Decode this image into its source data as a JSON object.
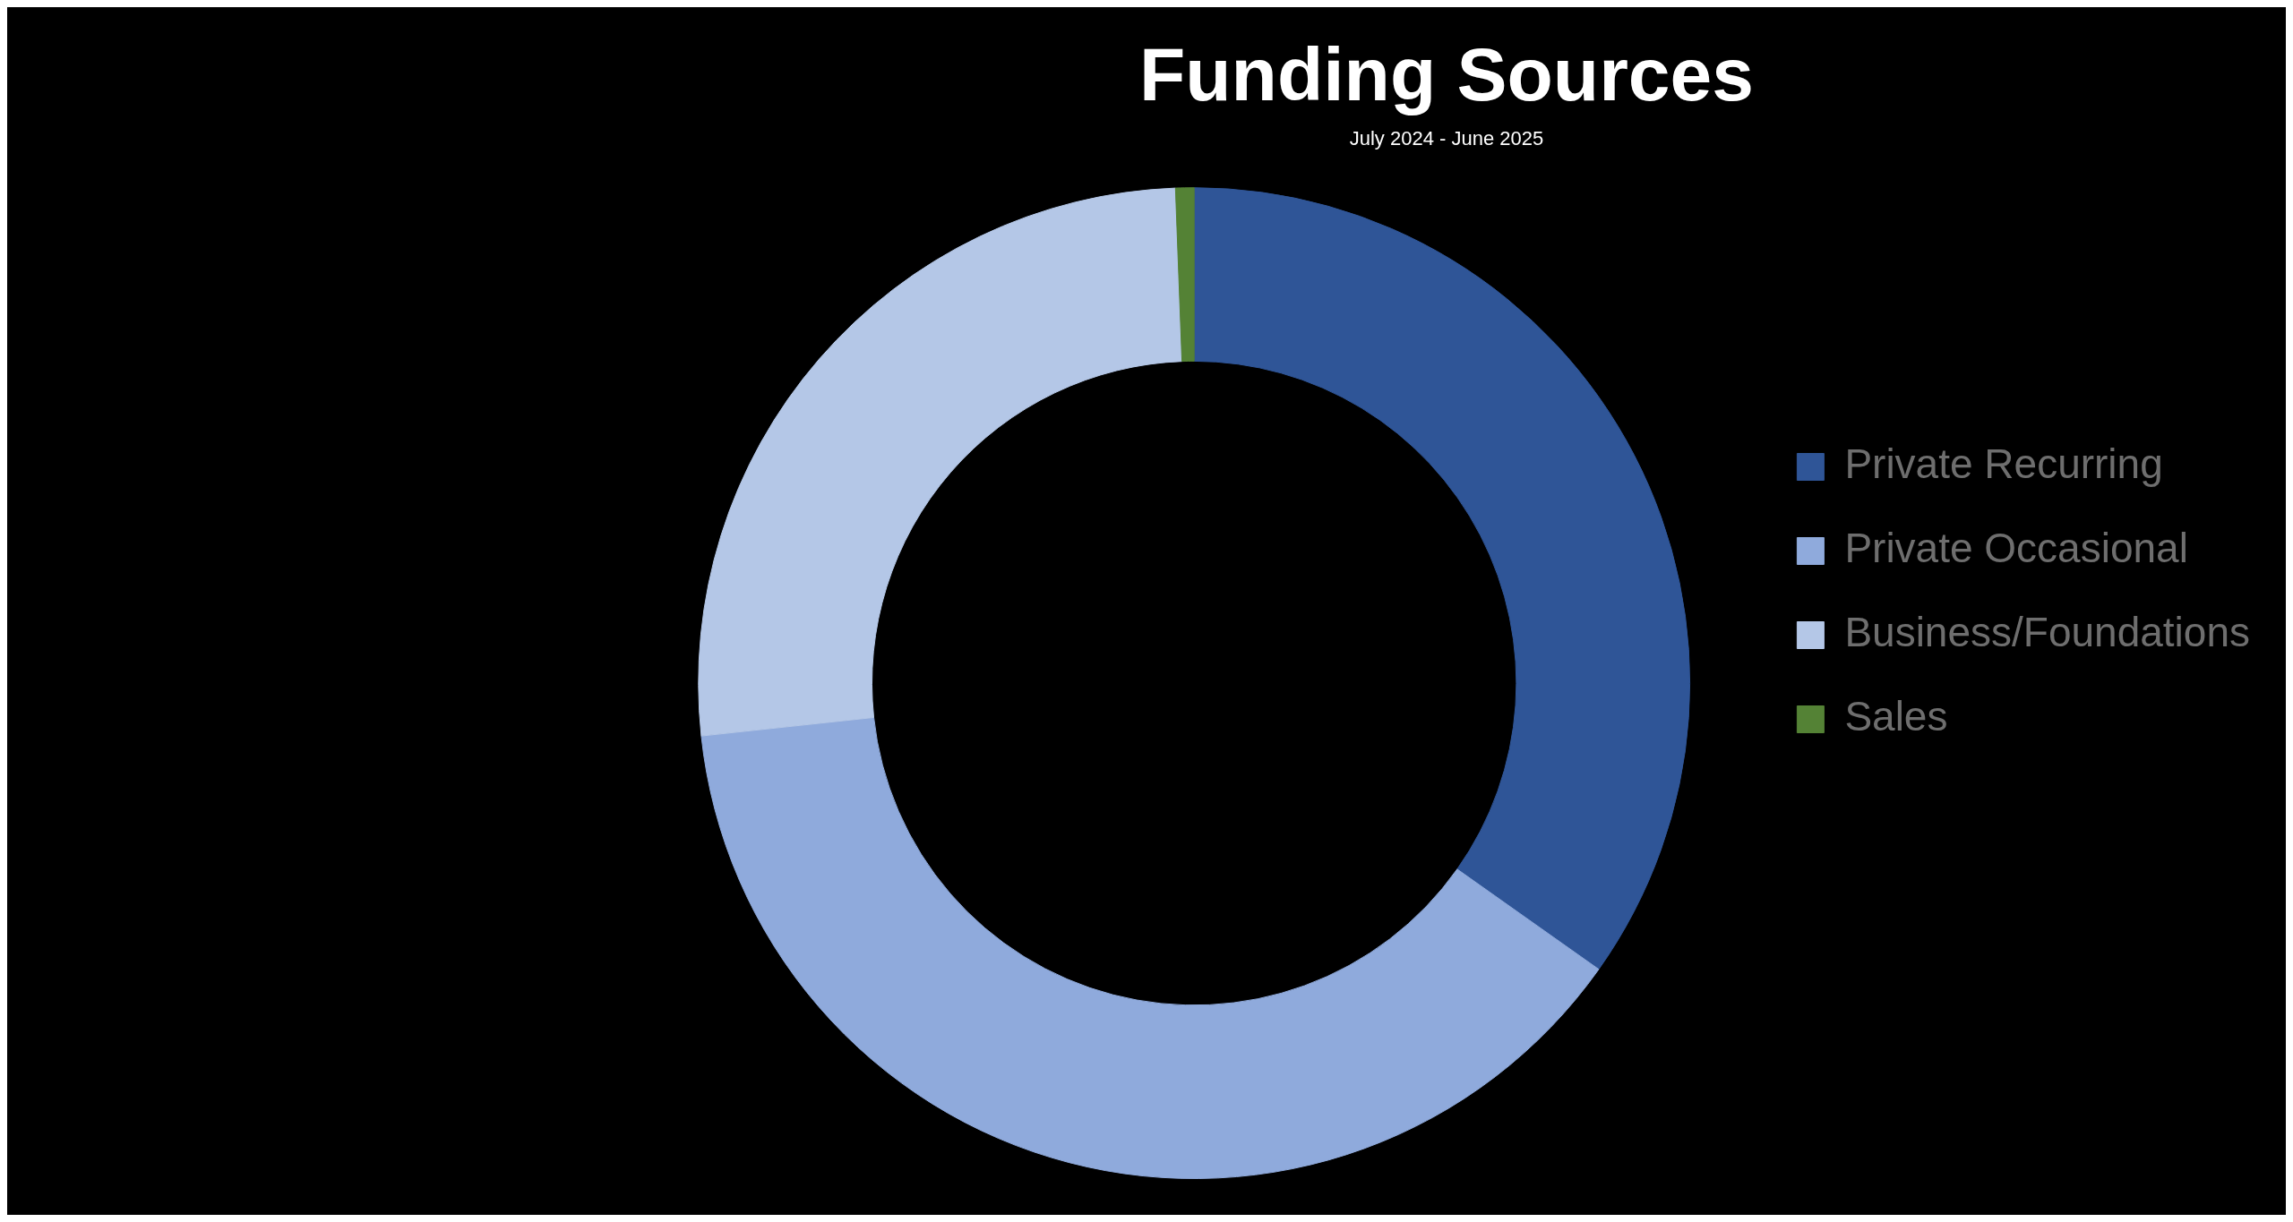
{
  "chart_data": {
    "type": "donut",
    "title": "Funding Sources",
    "subtitle": "July 2024 - June 2025",
    "categories": [
      "Private Recurring",
      "Private Occasional",
      "Business/Foundations",
      "Sales"
    ],
    "values": [
      34.8,
      38.5,
      26.1,
      0.6
    ],
    "colors": [
      "#2f5597",
      "#8faadc",
      "#b4c7e7",
      "#548235"
    ],
    "legend": "right"
  }
}
